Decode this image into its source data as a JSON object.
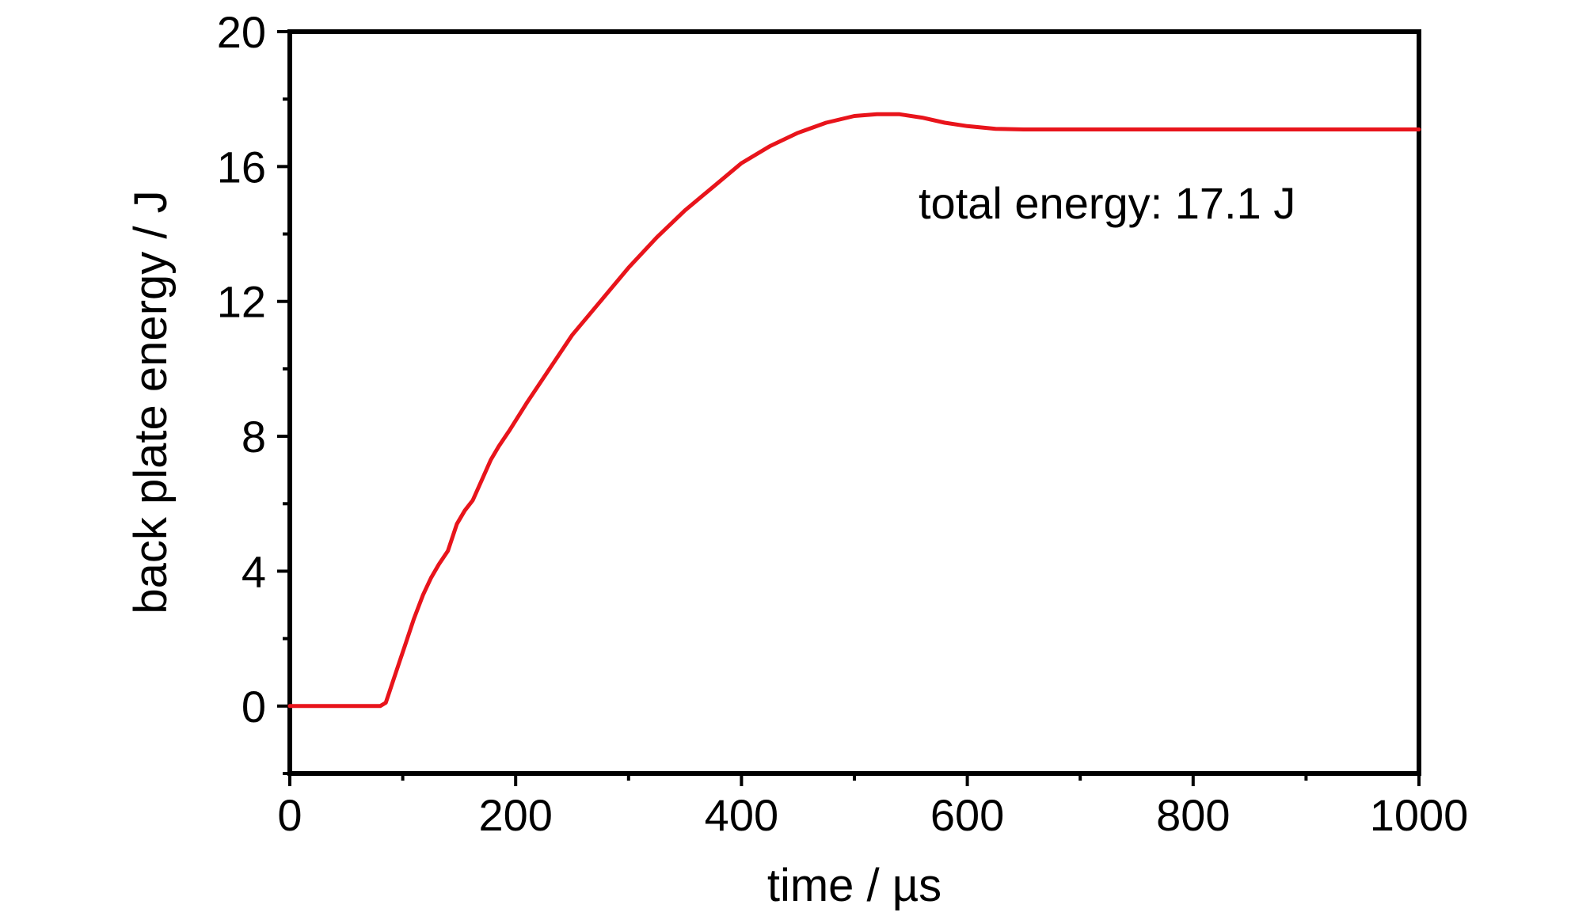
{
  "chart_data": {
    "type": "line",
    "title": "",
    "xlabel": "time / µs",
    "ylabel": "back plate energy / J",
    "xlim": [
      0,
      1000
    ],
    "ylim": [
      -2,
      20
    ],
    "xticks": [
      0,
      200,
      400,
      600,
      800,
      1000
    ],
    "xtick_labels": [
      "0",
      "200",
      "400",
      "600",
      "800",
      "1000"
    ],
    "yticks": [
      0,
      4,
      8,
      12,
      16,
      20
    ],
    "ytick_labels": [
      "0",
      "4",
      "8",
      "12",
      "16",
      "20"
    ],
    "grid": false,
    "annotation": "total energy: 17.1 J",
    "series_color": "#e8141b",
    "series": [
      {
        "x": [
          0,
          40,
          80,
          85,
          88,
          92,
          97,
          102,
          110,
          118,
          125,
          132,
          140,
          148,
          155,
          162,
          170,
          178,
          185,
          195,
          210,
          230,
          250,
          275,
          300,
          325,
          350,
          375,
          400,
          425,
          450,
          475,
          500,
          520,
          540,
          560,
          580,
          600,
          625,
          650,
          700,
          800,
          900,
          1000
        ],
        "y": [
          0,
          0,
          0,
          0.1,
          0.4,
          0.8,
          1.3,
          1.8,
          2.6,
          3.3,
          3.8,
          4.2,
          4.6,
          5.4,
          5.8,
          6.1,
          6.7,
          7.3,
          7.7,
          8.2,
          9.0,
          10.0,
          11.0,
          12.0,
          13.0,
          13.9,
          14.7,
          15.4,
          16.1,
          16.6,
          17.0,
          17.3,
          17.5,
          17.55,
          17.55,
          17.45,
          17.3,
          17.2,
          17.12,
          17.1,
          17.1,
          17.1,
          17.1,
          17.1
        ]
      }
    ]
  }
}
